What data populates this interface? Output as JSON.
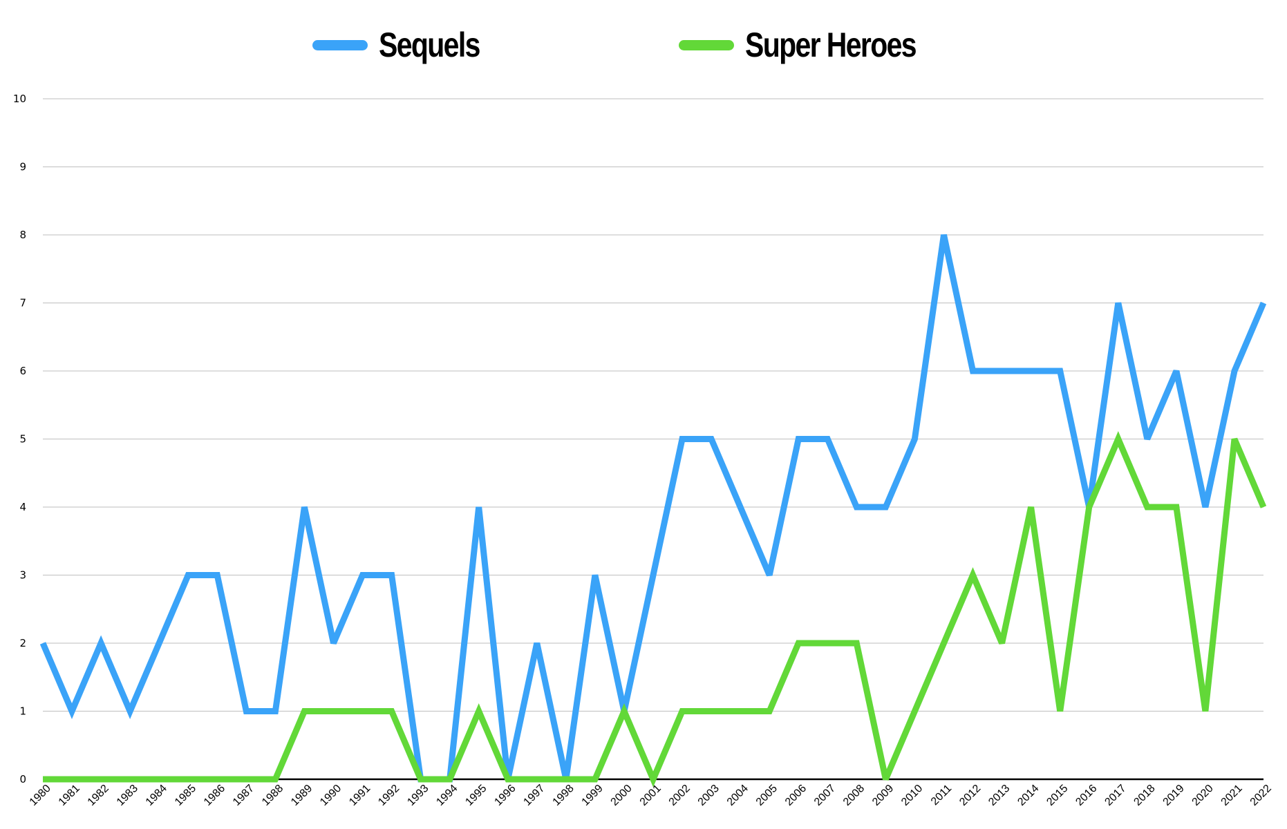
{
  "chart_data": {
    "type": "line",
    "title": "",
    "xlabel": "",
    "ylabel": "",
    "ylim": [
      0,
      10
    ],
    "yticks": [
      0,
      1,
      2,
      3,
      4,
      5,
      6,
      7,
      8,
      9,
      10
    ],
    "grid": true,
    "legend_position": "top",
    "x": [
      "1980",
      "1981",
      "1982",
      "1983",
      "1984",
      "1985",
      "1986",
      "1987",
      "1988",
      "1989",
      "1990",
      "1991",
      "1992",
      "1993",
      "1994",
      "1995",
      "1996",
      "1997",
      "1998",
      "1999",
      "2000",
      "2001",
      "2002",
      "2003",
      "2004",
      "2005",
      "2006",
      "2007",
      "2008",
      "2009",
      "2010",
      "2011",
      "2012",
      "2013",
      "2014",
      "2015",
      "2016",
      "2017",
      "2018",
      "2019",
      "2020",
      "2021",
      "2022"
    ],
    "series": [
      {
        "name": "Sequels",
        "color": "#3aa3f8",
        "values": [
          2,
          1,
          2,
          1,
          2,
          3,
          3,
          1,
          1,
          4,
          2,
          3,
          3,
          0,
          0,
          4,
          0,
          2,
          0,
          3,
          1,
          3,
          5,
          5,
          4,
          3,
          5,
          5,
          4,
          4,
          5,
          8,
          6,
          6,
          6,
          6,
          4,
          7,
          5,
          6,
          4,
          6,
          7
        ]
      },
      {
        "name": "Super Heroes",
        "color": "#62d838",
        "values": [
          0,
          0,
          0,
          0,
          0,
          0,
          0,
          0,
          0,
          1,
          1,
          1,
          1,
          0,
          0,
          1,
          0,
          0,
          0,
          0,
          1,
          0,
          1,
          1,
          1,
          1,
          2,
          2,
          2,
          0,
          1,
          2,
          3,
          2,
          4,
          1,
          4,
          5,
          4,
          4,
          1,
          5,
          4
        ]
      }
    ]
  },
  "legend": {
    "items": [
      {
        "label": "Sequels",
        "color": "#3aa3f8"
      },
      {
        "label": "Super Heroes",
        "color": "#62d838"
      }
    ]
  }
}
